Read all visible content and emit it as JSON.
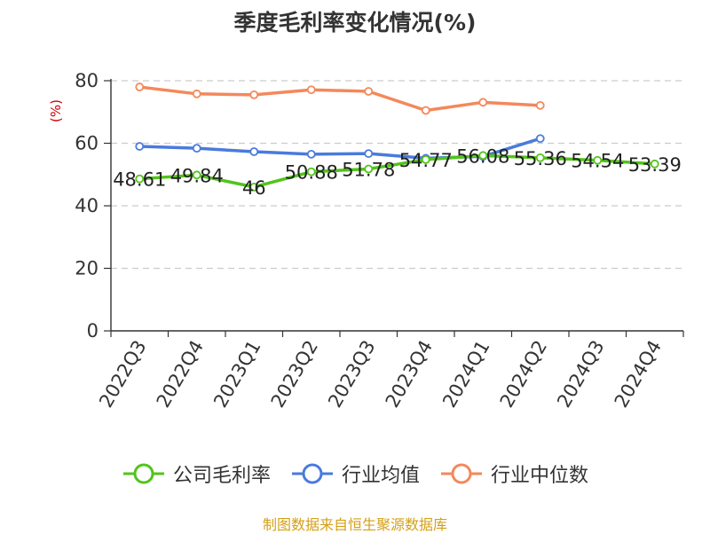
{
  "chart_data": {
    "type": "line",
    "title": "季度毛利率变化情况(%)",
    "ylabel": "(%)",
    "xlabel": "",
    "ylim": [
      0,
      80
    ],
    "yticks": [
      0,
      20,
      40,
      60,
      80
    ],
    "grid": true,
    "legend_position": "bottom",
    "categories": [
      "2022Q3",
      "2022Q4",
      "2023Q1",
      "2023Q2",
      "2023Q3",
      "2023Q4",
      "2024Q1",
      "2024Q2",
      "2024Q3",
      "2024Q4"
    ],
    "series": [
      {
        "name": "公司毛利率",
        "color": "#52c41a",
        "labels": true,
        "values": [
          48.61,
          49.84,
          46,
          50.88,
          51.78,
          54.77,
          56.08,
          55.36,
          54.54,
          53.39
        ],
        "label_text": [
          "48.61",
          "49.84",
          "46",
          "50.88",
          "51.78",
          "54.77",
          "56.08",
          "55.36",
          "54.54",
          "53.39"
        ]
      },
      {
        "name": "行业均值",
        "color": "#4a7bdc",
        "labels": false,
        "values": [
          59,
          58.4,
          57.3,
          56.5,
          56.7,
          55.2,
          55.8,
          61.5,
          null,
          null
        ]
      },
      {
        "name": "行业中位数",
        "color": "#f4885a",
        "labels": false,
        "values": [
          78,
          75.8,
          75.5,
          77.1,
          76.6,
          70.5,
          73.1,
          72.1,
          null,
          null
        ]
      }
    ]
  },
  "source": "制图数据来自恒生聚源数据库",
  "colors": {
    "axis": "#333333",
    "grid": "#cccccc",
    "ylabel": "#cc0000",
    "source": "#d4a017"
  }
}
